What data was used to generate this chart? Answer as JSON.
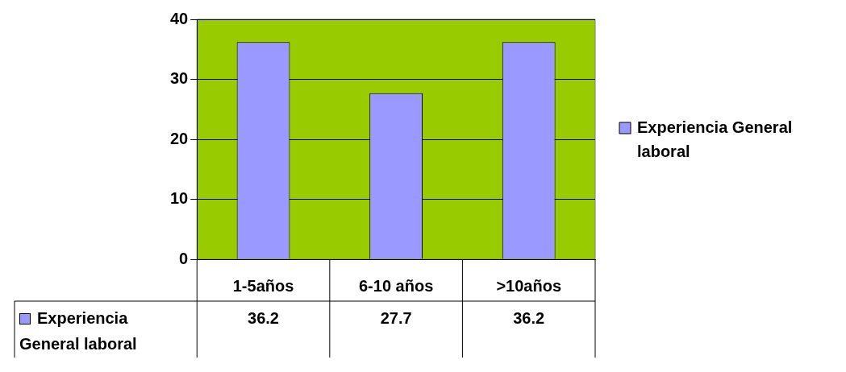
{
  "chart_data": {
    "type": "bar",
    "categories": [
      "1-5años",
      "6-10 años",
      ">10años"
    ],
    "series": [
      {
        "name": "Experiencia General laboral",
        "color": "#9999ff",
        "values": [
          36.2,
          27.7,
          36.2
        ]
      }
    ],
    "ylim": [
      0,
      40
    ],
    "yticks": [
      0,
      10,
      20,
      30,
      40
    ],
    "grid": "y",
    "legend": "right",
    "data_labels": true
  }
}
